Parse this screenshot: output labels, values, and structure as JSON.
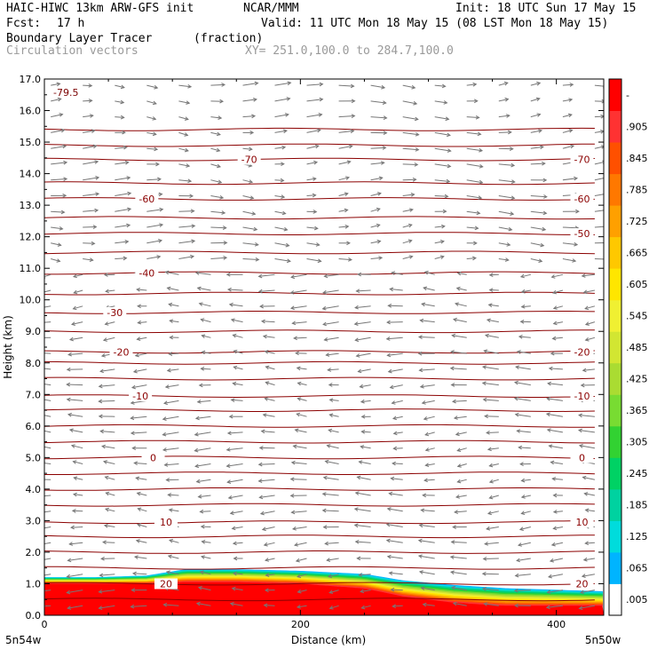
{
  "header": {
    "model": "HAIC-HIWC 13km ARW-GFS init",
    "org": "NCAR/MMM",
    "init": "Init: 18 UTC Sun 17 May 15",
    "fcst_label": "Fcst:",
    "fcst_value": "17 h",
    "valid": "Valid: 11 UTC Mon 18 May 15 (08 LST Mon 18 May 15)",
    "field": "Boundary Layer Tracer",
    "field_units": "(fraction)",
    "vectors": "Circulation vectors",
    "xy": "XY= 251.0,100.0 to 284.7,100.0"
  },
  "chart_data": {
    "type": "heatmap",
    "xlabel": "Distance (km)",
    "ylabel": "Height (km)",
    "xlim": [
      0,
      437
    ],
    "ylim": [
      0,
      17
    ],
    "x_ticks": [
      {
        "value": 0,
        "label": "0"
      },
      {
        "value": 200,
        "label": "200"
      },
      {
        "value": 400,
        "label": "400"
      }
    ],
    "y_ticks": [
      "0.0",
      "1.0",
      "2.0",
      "3.0",
      "4.0",
      "5.0",
      "6.0",
      "7.0",
      "8.0",
      "9.0",
      "10.0",
      "11.0",
      "12.0",
      "13.0",
      "14.0",
      "15.0",
      "16.0",
      "17.0"
    ],
    "endpoints": {
      "left": "5n54w",
      "right": "5n50w"
    },
    "colorbar": {
      "labels": [
        ".005",
        ".065",
        ".125",
        ".185",
        ".245",
        ".305",
        ".365",
        ".425",
        ".485",
        ".545",
        ".605",
        ".665",
        ".725",
        ".785",
        ".845",
        ".905",
        "-"
      ],
      "colors": [
        "#ffffff",
        "#00b4ff",
        "#00dcdc",
        "#00d2a0",
        "#00d264",
        "#32d232",
        "#78dc32",
        "#aadc32",
        "#d2e632",
        "#f0f032",
        "#ffe600",
        "#ffc800",
        "#ffa000",
        "#ff7800",
        "#ff5000",
        "#ff3232",
        "#ff0000"
      ]
    },
    "tracer_field": {
      "description_free": true,
      "x_km": [
        0,
        40,
        80,
        110,
        150,
        200,
        250,
        280,
        320,
        360,
        400,
        437
      ],
      "top_km": [
        1.2,
        1.2,
        1.25,
        1.45,
        1.45,
        1.4,
        1.3,
        1.1,
        0.95,
        0.85,
        0.8,
        0.75
      ],
      "red_top_km": [
        1.0,
        1.0,
        1.0,
        1.05,
        1.05,
        1.0,
        0.85,
        0.6,
        0.4,
        0.3,
        0.3,
        0.3
      ],
      "max_label": "-79.5"
    },
    "isotherms": {
      "units": "C",
      "levels": [
        {
          "temp": 20,
          "height_km": 1.0,
          "labels_km": [
            95,
            420
          ]
        },
        {
          "temp": 10,
          "height_km": 2.95,
          "labels_km": [
            95,
            420
          ]
        },
        {
          "temp": 0,
          "height_km": 5.0,
          "labels_km": [
            85,
            420
          ]
        },
        {
          "temp": -10,
          "height_km": 6.95,
          "labels_km": [
            75,
            420
          ]
        },
        {
          "temp": -20,
          "height_km": 8.35,
          "labels_km": [
            60,
            420
          ]
        },
        {
          "temp": -30,
          "height_km": 9.6,
          "labels_km": [
            55
          ]
        },
        {
          "temp": -40,
          "height_km": 10.85,
          "labels_km": [
            80
          ]
        },
        {
          "temp": -50,
          "height_km": 12.1,
          "labels_km": [
            420
          ]
        },
        {
          "temp": -60,
          "height_km": 13.2,
          "labels_km": [
            80,
            420
          ]
        },
        {
          "temp": -70,
          "height_km": 14.45,
          "labels_km": [
            160,
            420
          ]
        }
      ],
      "intermediate_heights_km": [
        0.5,
        1.5,
        2.0,
        2.5,
        3.5,
        4.0,
        4.5,
        5.5,
        6.0,
        6.5,
        7.5,
        8.0,
        9.0,
        10.2,
        11.5,
        12.6,
        13.7,
        14.9,
        15.4
      ]
    },
    "vectors": {
      "grid_step_km": 25,
      "low_level_direction": "west",
      "upper_level_direction": "east",
      "reversal_height_km": 11.0
    }
  }
}
